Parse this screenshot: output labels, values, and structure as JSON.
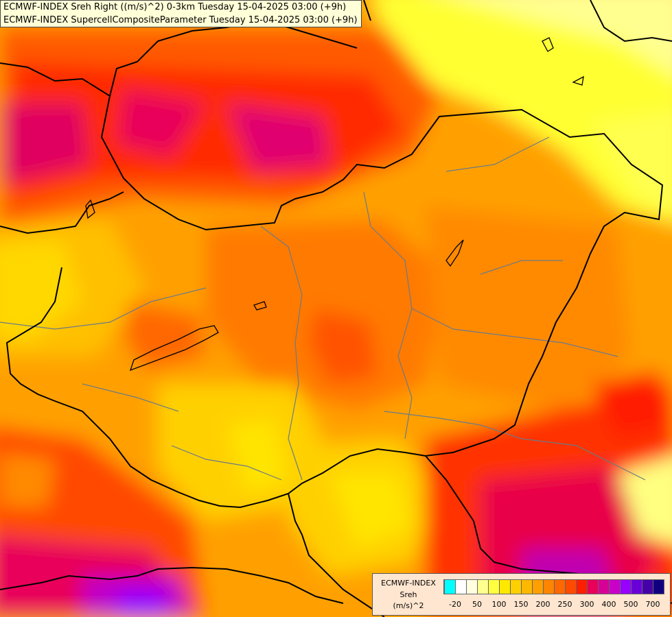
{
  "header": {
    "line1": "ECMWF-INDEX Sreh Right ((m/s)^2) 0-3km Tuesday 15-04-2025 03:00 (+9h)",
    "line2": "ECMWF-INDEX SupercellCompositeParameter Tuesday 15-04-2025 03:00 (+9h)"
  },
  "map": {
    "description_icon": "weather-map-raster",
    "border_color": "#000000",
    "river_color": "#6a7a8a"
  },
  "legend": {
    "product": "ECMWF-INDEX",
    "variable": "Sreh",
    "unit": "(m/s)^2",
    "colors": [
      "#00ffff",
      "#ffffff",
      "#ffffe0",
      "#ffff90",
      "#ffff40",
      "#ffe800",
      "#ffd000",
      "#ffb800",
      "#ffa000",
      "#ff8400",
      "#ff6800",
      "#ff4a00",
      "#ff1e00",
      "#e8005a",
      "#d60096",
      "#c800c8",
      "#9800ff",
      "#6a00d8",
      "#4600a8",
      "#100080"
    ],
    "ticks": [
      "-20",
      "50",
      "100",
      "150",
      "200",
      "250",
      "300",
      "400",
      "500",
      "700"
    ]
  }
}
